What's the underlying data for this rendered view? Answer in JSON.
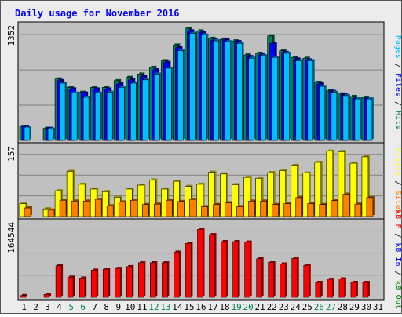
{
  "chart_data": {
    "type": "bar",
    "title": "Daily usage for November 2016",
    "categories": [
      "1",
      "2",
      "3",
      "4",
      "5",
      "6",
      "7",
      "8",
      "9",
      "10",
      "11",
      "12",
      "13",
      "14",
      "15",
      "16",
      "17",
      "18",
      "19",
      "20",
      "21",
      "22",
      "23",
      "24",
      "25",
      "26",
      "27",
      "28",
      "29",
      "30",
      "31"
    ],
    "weekend_days": [
      "5",
      "6",
      "12",
      "13",
      "19",
      "20",
      "26",
      "27"
    ],
    "colors": {
      "hits": "#00805c",
      "files": "#0000ff",
      "pages": "#00c0ff",
      "visits": "#ffff00",
      "sites": "#ff8000",
      "kb_f": "#ff0000",
      "kb_in": "#0000ff",
      "kb_out": "#008000",
      "title": "#0000ff",
      "weekend": "#00805c",
      "plot_bg": "#c0c0c0"
    },
    "panels": [
      {
        "id": "hits_files_pages",
        "ymax_label": "1352",
        "ymax": 1352,
        "axis_label": [
          {
            "text": "Pages",
            "color": "#00c0ff"
          },
          {
            "text": " / ",
            "color": "#000000"
          },
          {
            "text": "Files",
            "color": "#0000ff"
          },
          {
            "text": " / ",
            "color": "#000000"
          },
          {
            "text": "Hits",
            "color": "#00805c"
          }
        ],
        "series": [
          {
            "name": "Hits",
            "values": [
              170,
              null,
              145,
              740,
              640,
              580,
              640,
              640,
              720,
              760,
              800,
              880,
              960,
              1150,
              1352,
              1320,
              1230,
              1220,
              1200,
              1030,
              1050,
              1260,
              1080,
              1000,
              990,
              700,
              600,
              560,
              530,
              520,
              null
            ]
          },
          {
            "name": "Files",
            "values": [
              170,
              null,
              145,
              720,
              620,
              570,
              620,
              620,
              680,
              730,
              770,
              850,
              940,
              1120,
              1320,
              1300,
              1210,
              1210,
              1190,
              1010,
              1030,
              1170,
              1060,
              980,
              970,
              680,
              590,
              550,
              510,
              510,
              null
            ]
          },
          {
            "name": "Pages",
            "values": [
              160,
              null,
              135,
              690,
              570,
              520,
              570,
              580,
              640,
              690,
              730,
              800,
              870,
              1080,
              1290,
              1270,
              1200,
              1190,
              1170,
              990,
              1020,
              1000,
              1050,
              960,
              960,
              650,
              580,
              540,
              500,
              500,
              null
            ]
          }
        ]
      },
      {
        "id": "visits_sites",
        "ymax_label": "157",
        "ymax": 157,
        "axis_label": [
          {
            "text": "Visits",
            "color": "#ffff00"
          },
          {
            "text": " / ",
            "color": "#000000"
          },
          {
            "text": "Sites",
            "color": "#ff8000"
          }
        ],
        "series": [
          {
            "name": "Visits",
            "values": [
              30,
              null,
              18,
              60,
              105,
              75,
              64,
              58,
              45,
              64,
              73,
              85,
              64,
              82,
              70,
              75,
              103,
              99,
              74,
              91,
              89,
              102,
              107,
              119,
              101,
              126,
              152,
              151,
              124,
              139,
              null
            ]
          },
          {
            "name": "Sites",
            "values": [
              20,
              null,
              15,
              38,
              36,
              36,
              40,
              25,
              34,
              38,
              28,
              29,
              38,
              35,
              40,
              23,
              28,
              32,
              23,
              36,
              36,
              28,
              30,
              44,
              30,
              28,
              37,
              52,
              29,
              44,
              null
            ]
          }
        ]
      },
      {
        "id": "kbytes",
        "ymax_label": "164544",
        "ymax": 164544,
        "axis_label": [
          {
            "text": "kB F",
            "color": "#ff0000"
          },
          {
            "text": " / ",
            "color": "#000000"
          },
          {
            "text": "kB In",
            "color": "#0000ff"
          },
          {
            "text": " / ",
            "color": "#000000"
          },
          {
            "text": "kB Out",
            "color": "#008000"
          }
        ],
        "series": [
          {
            "name": "kB F",
            "values": [
              4000,
              null,
              6500,
              72000,
              46000,
              44000,
              62000,
              64000,
              66000,
              70000,
              79000,
              79000,
              79000,
              103000,
              123000,
              155000,
              143000,
              127000,
              127000,
              126000,
              88000,
              80000,
              76000,
              89000,
              73000,
              34000,
              41000,
              42000,
              34000,
              34000,
              null
            ]
          }
        ]
      }
    ]
  }
}
